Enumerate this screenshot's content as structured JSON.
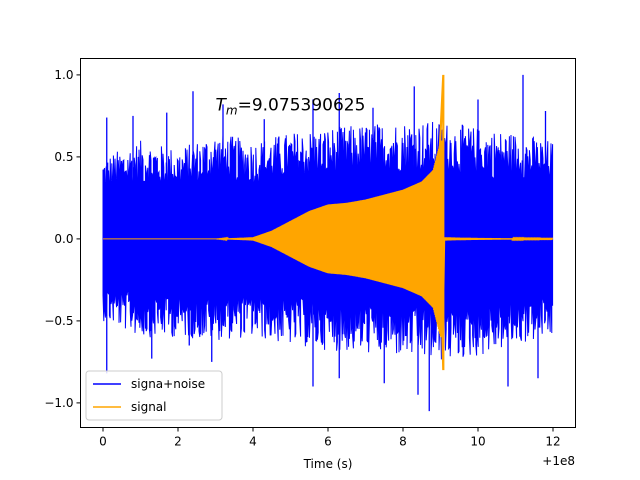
{
  "chart_data": {
    "type": "line",
    "title": "",
    "xlabel": "Time (s)",
    "ylabel": "",
    "x_offset_label": "+1e8",
    "xlim": [
      -0.6,
      12.6
    ],
    "ylim": [
      -1.15,
      1.1
    ],
    "xticks": [
      0,
      2,
      4,
      6,
      8,
      10,
      12
    ],
    "xtick_labels": [
      "0",
      "2",
      "4",
      "6",
      "8",
      "10",
      "12"
    ],
    "yticks": [
      -1.0,
      -0.5,
      0.0,
      0.5,
      1.0
    ],
    "ytick_labels": [
      "−1.0",
      "−0.5",
      "0.0",
      "0.5",
      "1.0"
    ],
    "annotation": {
      "symbol": "T",
      "subscript": "m",
      "value_text": "=9.075390625",
      "at": [
        3.0,
        0.82
      ]
    },
    "legend": {
      "location": "lower-left"
    },
    "series": [
      {
        "name": "signa+noise",
        "color": "#0000ff",
        "kind": "noise-band",
        "x_range": [
          0,
          12
        ],
        "upper_envelope": [
          [
            0.0,
            0.5
          ],
          [
            1.0,
            0.6
          ],
          [
            2.0,
            0.55
          ],
          [
            3.0,
            0.65
          ],
          [
            4.0,
            0.6
          ],
          [
            5.0,
            0.65
          ],
          [
            6.0,
            0.68
          ],
          [
            7.0,
            0.7
          ],
          [
            8.0,
            0.72
          ],
          [
            9.0,
            0.72
          ],
          [
            10.0,
            0.68
          ],
          [
            11.0,
            0.65
          ],
          [
            12.0,
            0.6
          ]
        ],
        "lower_envelope": [
          [
            0.0,
            -0.5
          ],
          [
            1.0,
            -0.6
          ],
          [
            2.0,
            -0.6
          ],
          [
            3.0,
            -0.62
          ],
          [
            4.0,
            -0.6
          ],
          [
            5.0,
            -0.65
          ],
          [
            6.0,
            -0.68
          ],
          [
            7.0,
            -0.7
          ],
          [
            8.0,
            -0.72
          ],
          [
            9.0,
            -0.75
          ],
          [
            10.0,
            -0.72
          ],
          [
            11.0,
            -0.65
          ],
          [
            12.0,
            -0.6
          ]
        ],
        "peaks": [
          [
            0.1,
            0.74
          ],
          [
            0.8,
            0.75
          ],
          [
            1.7,
            0.77
          ],
          [
            2.4,
            0.9
          ],
          [
            3.2,
            0.82
          ],
          [
            4.3,
            0.73
          ],
          [
            5.6,
            0.85
          ],
          [
            6.3,
            0.89
          ],
          [
            7.2,
            0.8
          ],
          [
            8.3,
            0.93
          ],
          [
            10.0,
            0.85
          ],
          [
            11.2,
            1.0
          ],
          [
            11.8,
            0.78
          ]
        ],
        "troughs": [
          [
            0.1,
            -0.82
          ],
          [
            1.3,
            -0.73
          ],
          [
            2.3,
            -0.65
          ],
          [
            2.9,
            -0.75
          ],
          [
            5.6,
            -0.9
          ],
          [
            6.3,
            -0.85
          ],
          [
            7.5,
            -0.88
          ],
          [
            8.4,
            -0.95
          ],
          [
            8.7,
            -1.05
          ],
          [
            10.8,
            -0.9
          ],
          [
            11.6,
            -0.85
          ]
        ]
      },
      {
        "name": "signal",
        "color": "#ffa500",
        "kind": "chirp",
        "x_range": [
          0,
          12
        ],
        "envelope": [
          [
            0.0,
            0.0
          ],
          [
            3.0,
            0.0
          ],
          [
            4.0,
            0.01
          ],
          [
            4.5,
            0.05
          ],
          [
            5.0,
            0.11
          ],
          [
            5.5,
            0.17
          ],
          [
            6.0,
            0.21
          ],
          [
            6.5,
            0.22
          ],
          [
            7.0,
            0.24
          ],
          [
            7.5,
            0.27
          ],
          [
            8.0,
            0.3
          ],
          [
            8.5,
            0.35
          ],
          [
            8.8,
            0.42
          ],
          [
            9.0,
            0.6
          ],
          [
            9.06,
            1.0
          ]
        ],
        "merger_time": 9.075390625,
        "merger_peak": 1.0,
        "merger_trough": -0.8,
        "ringdown_level": 0.01
      }
    ]
  }
}
